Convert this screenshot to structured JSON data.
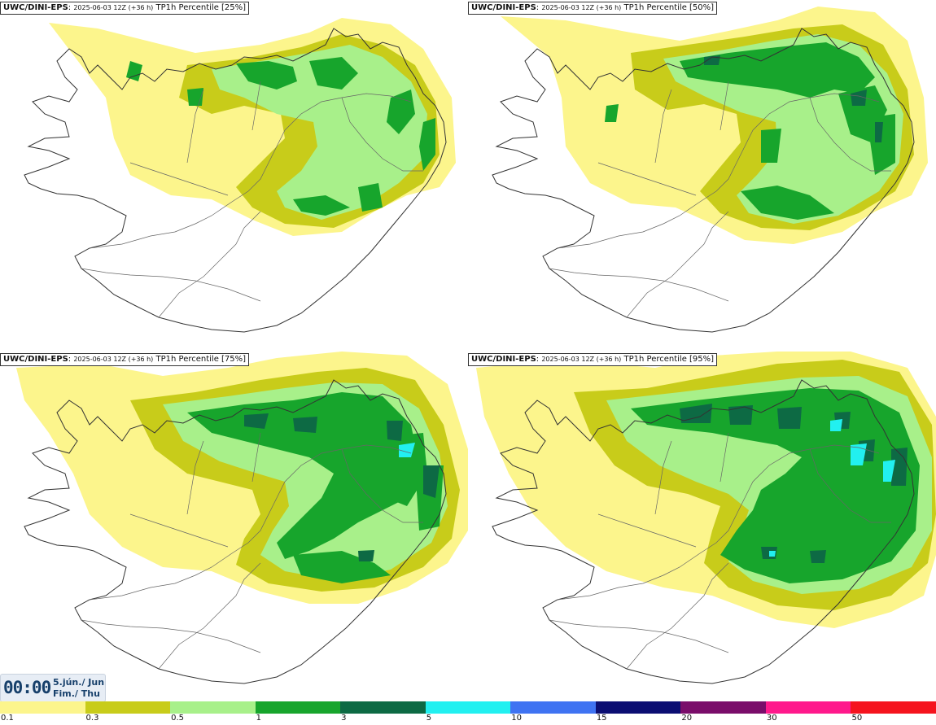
{
  "panels": [
    {
      "model": "UWC/DINI-EPS",
      "run": "2025-06-03 12Z (+36 h)",
      "field": "TP1h Percentile [25%]"
    },
    {
      "model": "UWC/DINI-EPS",
      "run": "2025-06-03 12Z (+36 h)",
      "field": "TP1h Percentile [50%]"
    },
    {
      "model": "UWC/DINI-EPS",
      "run": "2025-06-03 12Z (+36 h)",
      "field": "TP1h Percentile [75%]"
    },
    {
      "model": "UWC/DINI-EPS",
      "run": "2025-06-03 12Z (+36 h)",
      "field": "TP1h Percentile [95%]"
    }
  ],
  "valid_time": {
    "clock": "00:00",
    "date_line1": "5.jún./ Jun",
    "date_line2": "Fim./ Thu"
  },
  "legend": {
    "labels": [
      "0.1",
      "0.3",
      "0.5",
      "1",
      "3",
      "5",
      "10",
      "15",
      "20",
      "30",
      "50"
    ],
    "colors": [
      "#fcf58c",
      "#c8cc1a",
      "#a8f08a",
      "#17a52c",
      "#0d6a44",
      "#22f0f0",
      "#3f73f2",
      "#0b0e72",
      "#7a0d6a",
      "#ff198c",
      "#f5141e"
    ]
  }
}
